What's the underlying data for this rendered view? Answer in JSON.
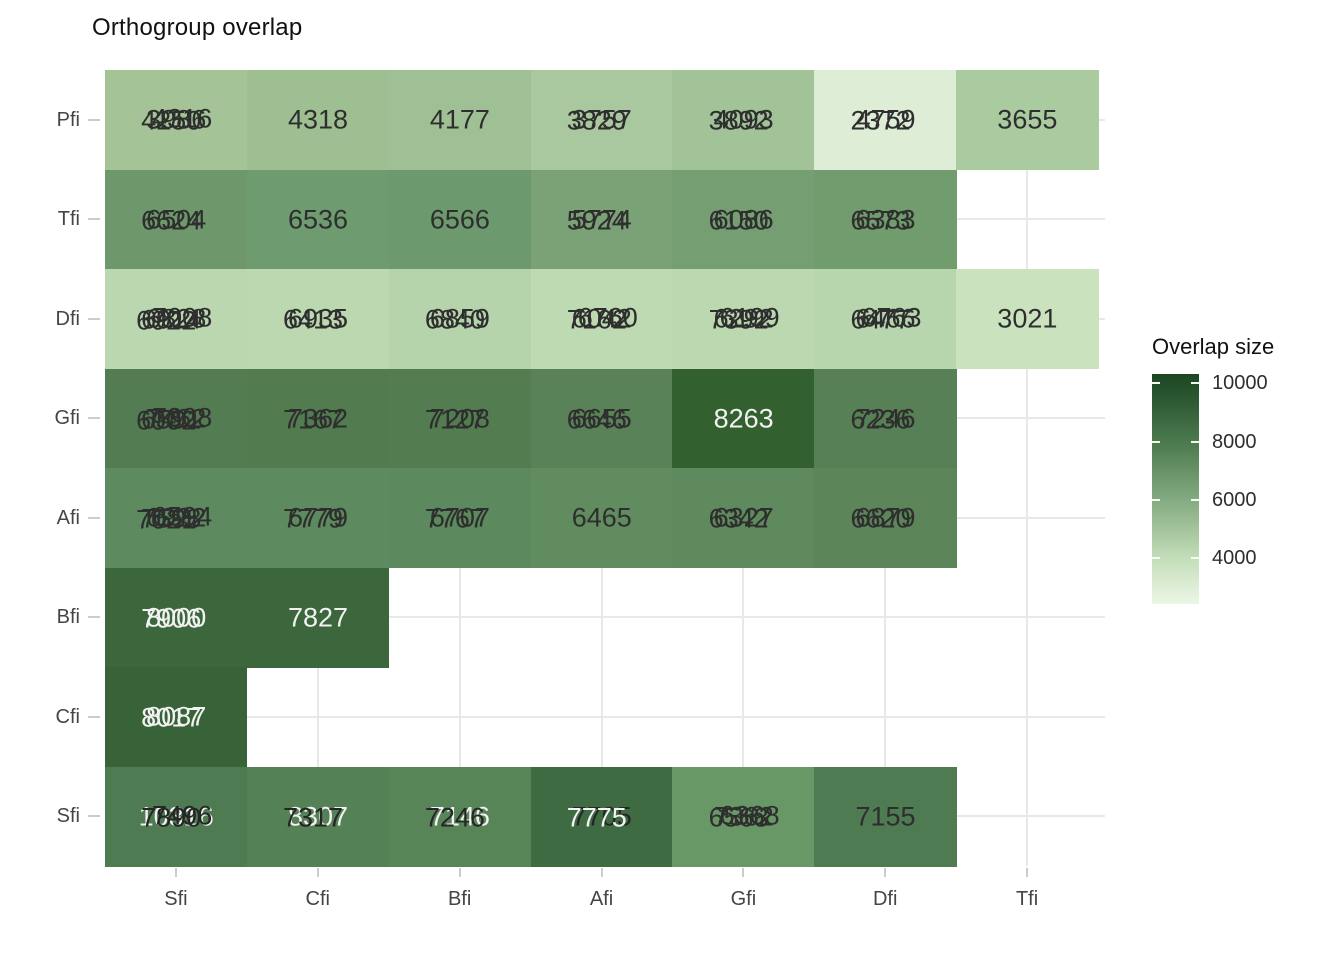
{
  "title": "Orthogroup overlap",
  "legend": {
    "title": "Overlap size",
    "tick_labels": [
      "10000",
      "8000",
      "6000",
      "4000"
    ],
    "tick_offsets": [
      8,
      67,
      125,
      183
    ],
    "gradient_top": "#1d4522",
    "gradient_bottom": "#ecf7e6"
  },
  "chart_data": {
    "type": "heatmap",
    "title": "Orthogroup overlap",
    "xlabel": "",
    "ylabel": "",
    "grid": true,
    "legend_position": "right",
    "legend_title": "Overlap size",
    "legend_ticks": [
      10000,
      8000,
      6000,
      4000
    ],
    "color_scale": {
      "low": "#ecf7e6",
      "high": "#1d4522",
      "domain": [
        2400,
        10300
      ]
    },
    "x_categories": [
      "Sfi",
      "Cfi",
      "Bfi",
      "Afi",
      "Gfi",
      "Dfi",
      "Tfi"
    ],
    "y_categories": [
      "Pfi",
      "Tfi",
      "Dfi",
      "Gfi",
      "Afi",
      "Bfi",
      "Cfi",
      "Sfi"
    ],
    "note": "cells contain overprinted labels where multiple observations share a tile",
    "cells": [
      {
        "row": "Pfi",
        "col": "Sfi",
        "fill": "#a4c498",
        "values": [
          "3986",
          "4250",
          "4316"
        ]
      },
      {
        "row": "Pfi",
        "col": "Cfi",
        "fill": "#9dbf92",
        "values": [
          "4318"
        ]
      },
      {
        "row": "Pfi",
        "col": "Bfi",
        "fill": "#9fc094",
        "values": [
          "4177"
        ]
      },
      {
        "row": "Pfi",
        "col": "Afi",
        "fill": "#aac8a0",
        "values": [
          "3757",
          "3829"
        ]
      },
      {
        "row": "Pfi",
        "col": "Gfi",
        "fill": "#a2c397",
        "values": [
          "4093",
          "3892"
        ]
      },
      {
        "row": "Pfi",
        "col": "Dfi",
        "fill": "#ddedd6",
        "values": [
          "4759",
          "2372"
        ]
      },
      {
        "row": "Pfi",
        "col": "Tfi",
        "fill": "#aacaa0",
        "values": [
          "3655"
        ]
      },
      {
        "row": "Tfi",
        "col": "Sfi",
        "fill": "#6e986c",
        "values": [
          "6504",
          "6624"
        ]
      },
      {
        "row": "Tfi",
        "col": "Cfi",
        "fill": "#6f9b70",
        "values": [
          "6536"
        ]
      },
      {
        "row": "Tfi",
        "col": "Bfi",
        "fill": "#6d996e",
        "values": [
          "6566"
        ]
      },
      {
        "row": "Tfi",
        "col": "Afi",
        "fill": "#7aa276",
        "values": [
          "5774",
          "5924"
        ]
      },
      {
        "row": "Tfi",
        "col": "Gfi",
        "fill": "#759e72",
        "values": [
          "6086",
          "6150"
        ]
      },
      {
        "row": "Tfi",
        "col": "Dfi",
        "fill": "#719c6e",
        "values": [
          "6383",
          "6573"
        ]
      },
      {
        "row": "Dfi",
        "col": "Sfi",
        "fill": "#bad7b0",
        "values": [
          "6828",
          "6914",
          "7008",
          "6922"
        ]
      },
      {
        "row": "Dfi",
        "col": "Cfi",
        "fill": "#bbd8b1",
        "values": [
          "6935",
          "6413"
        ]
      },
      {
        "row": "Dfi",
        "col": "Bfi",
        "fill": "#b6d4ac",
        "values": [
          "6859",
          "6840"
        ]
      },
      {
        "row": "Dfi",
        "col": "Afi",
        "fill": "#bddab3",
        "values": [
          "6042",
          "7162",
          "6760"
        ]
      },
      {
        "row": "Dfi",
        "col": "Gfi",
        "fill": "#bbd8b1",
        "values": [
          "6292",
          "7392",
          "6199"
        ]
      },
      {
        "row": "Dfi",
        "col": "Dfi",
        "fill": "#b8d6ae",
        "values": [
          "6466",
          "6477",
          "6763"
        ]
      },
      {
        "row": "Dfi",
        "col": "Tfi",
        "fill": "#cbe2bf",
        "values": [
          "3021"
        ]
      },
      {
        "row": "Gfi",
        "col": "Sfi",
        "fill": "#547c52",
        "values": [
          "7462",
          "6591",
          "7308",
          "6902"
        ]
      },
      {
        "row": "Gfi",
        "col": "Cfi",
        "fill": "#527c50",
        "values": [
          "7362",
          "7167"
        ]
      },
      {
        "row": "Gfi",
        "col": "Bfi",
        "fill": "#537d51",
        "values": [
          "7208",
          "7127"
        ]
      },
      {
        "row": "Gfi",
        "col": "Afi",
        "fill": "#5a8258",
        "values": [
          "6655",
          "6646"
        ]
      },
      {
        "row": "Gfi",
        "col": "Gfi",
        "fill": "#33602f",
        "values": [
          "8263"
        ],
        "text_color": "#f2f2f2"
      },
      {
        "row": "Gfi",
        "col": "Dfi",
        "fill": "#588056",
        "values": [
          "7246",
          "6236"
        ]
      },
      {
        "row": "Afi",
        "col": "Sfi",
        "fill": "#5d8a5e",
        "values": [
          "6922",
          "7598",
          "6594",
          "7021"
        ]
      },
      {
        "row": "Afi",
        "col": "Cfi",
        "fill": "#5d8a5e",
        "values": [
          "6779",
          "7779"
        ]
      },
      {
        "row": "Afi",
        "col": "Bfi",
        "fill": "#5c895d",
        "values": [
          "6707",
          "7767"
        ]
      },
      {
        "row": "Afi",
        "col": "Afi",
        "fill": "#618c60",
        "values": [
          "6465"
        ]
      },
      {
        "row": "Afi",
        "col": "Gfi",
        "fill": "#5f8a5e",
        "values": [
          "6327",
          "6342"
        ]
      },
      {
        "row": "Afi",
        "col": "Dfi",
        "fill": "#5c865a",
        "values": [
          "6879",
          "6620"
        ]
      },
      {
        "row": "Bfi",
        "col": "Sfi",
        "fill": "#3c663c",
        "values": [
          "8000",
          "7906"
        ],
        "text_color": "#f2f2f2"
      },
      {
        "row": "Bfi",
        "col": "Cfi",
        "fill": "#3c663c",
        "values": [
          "7827"
        ],
        "text_color": "#f2f2f2"
      },
      {
        "row": "Cfi",
        "col": "Sfi",
        "fill": "#386238",
        "values": [
          "8087",
          "8017"
        ],
        "text_color": "#f2f2f2"
      },
      {
        "row": "Sfi",
        "col": "Sfi",
        "fill": "#4e7b51",
        "values": [
          "10316",
          "7890",
          "7496"
        ],
        "colors": [
          "#f2f2f2",
          "#262626",
          "#262626"
        ]
      },
      {
        "row": "Sfi",
        "col": "Cfi",
        "fill": "#548156",
        "values": [
          "8307",
          "7317"
        ],
        "colors": [
          "#f2f2f2",
          "#262626"
        ]
      },
      {
        "row": "Sfi",
        "col": "Bfi",
        "fill": "#588558",
        "values": [
          "7146",
          "7246"
        ],
        "colors": [
          "#f2f2f2",
          "#262626"
        ]
      },
      {
        "row": "Sfi",
        "col": "Afi",
        "fill": "#3f6b42",
        "values": [
          "7705",
          "7775"
        ],
        "colors": [
          "#262626",
          "#f2f2f2"
        ]
      },
      {
        "row": "Sfi",
        "col": "Gfi",
        "fill": "#699867",
        "values": [
          "7362",
          "6568",
          "6368"
        ]
      },
      {
        "row": "Sfi",
        "col": "Dfi",
        "fill": "#4e7b51",
        "values": [
          "7155"
        ]
      }
    ]
  }
}
